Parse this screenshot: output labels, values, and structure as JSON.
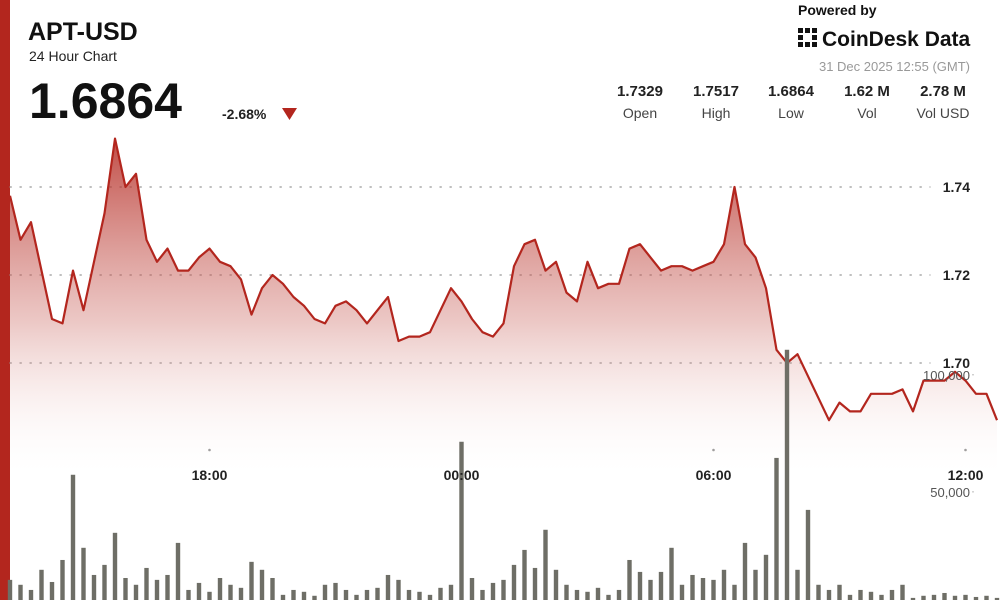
{
  "header": {
    "title": "APT-USD",
    "subtitle": "24 Hour Chart",
    "price": "1.6864",
    "change": "-2.68%",
    "powered_by": "Powered by",
    "brand": "CoinDesk Data",
    "timestamp": "31 Dec 2025 12:55 (GMT)",
    "stats": [
      {
        "value": "1.7329",
        "label": "Open"
      },
      {
        "value": "1.7517",
        "label": "High"
      },
      {
        "value": "1.6864",
        "label": "Low"
      },
      {
        "value": "1.62 M",
        "label": "Vol"
      },
      {
        "value": "2.78 M",
        "label": "Vol USD"
      }
    ]
  },
  "chart_data": {
    "type": "line",
    "categories": [
      null,
      null,
      null,
      null,
      null,
      null,
      null,
      null,
      null,
      null,
      null,
      null,
      null,
      null,
      null,
      null,
      null,
      null,
      null,
      "18:00",
      null,
      null,
      null,
      null,
      null,
      null,
      null,
      null,
      null,
      null,
      null,
      null,
      null,
      null,
      null,
      null,
      null,
      null,
      null,
      null,
      null,
      null,
      null,
      "00:00",
      null,
      null,
      null,
      null,
      null,
      null,
      null,
      null,
      null,
      null,
      null,
      null,
      null,
      null,
      null,
      null,
      null,
      null,
      null,
      null,
      null,
      null,
      null,
      "06:00",
      null,
      null,
      null,
      null,
      null,
      null,
      null,
      null,
      null,
      null,
      null,
      null,
      null,
      null,
      null,
      null,
      null,
      null,
      null,
      null,
      null,
      null,
      null,
      "12:00",
      null,
      null,
      null
    ],
    "series": [
      {
        "color": "#b3261e",
        "values": [
          1.738,
          1.728,
          1.732,
          1.721,
          1.71,
          1.709,
          1.721,
          1.712,
          1.723,
          1.734,
          1.751,
          1.74,
          1.743,
          1.728,
          1.723,
          1.726,
          1.721,
          1.721,
          1.724,
          1.726,
          1.723,
          1.722,
          1.719,
          1.711,
          1.717,
          1.72,
          1.718,
          1.715,
          1.713,
          1.71,
          1.709,
          1.713,
          1.714,
          1.712,
          1.709,
          1.712,
          1.715,
          1.705,
          1.706,
          1.706,
          1.707,
          1.712,
          1.717,
          1.714,
          1.71,
          1.707,
          1.706,
          1.709,
          1.722,
          1.727,
          1.728,
          1.721,
          1.723,
          1.716,
          1.714,
          1.723,
          1.717,
          1.718,
          1.718,
          1.726,
          1.727,
          1.724,
          1.721,
          1.722,
          1.722,
          1.721,
          1.722,
          1.723,
          1.727,
          1.74,
          1.727,
          1.724,
          1.717,
          1.703,
          1.7,
          1.702,
          1.697,
          1.692,
          1.687,
          1.691,
          1.689,
          1.689,
          1.693,
          1.693,
          1.693,
          1.694,
          1.689,
          1.696,
          1.696,
          1.696,
          1.698,
          1.696,
          1.693,
          1.693,
          1.687
        ]
      },
      {
        "type": "bar",
        "axis": "y2",
        "color": "#6e6e66",
        "values": [
          12400,
          10300,
          8100,
          16700,
          11500,
          20900,
          57300,
          26100,
          14500,
          18800,
          32500,
          13200,
          10300,
          17500,
          12400,
          14500,
          28200,
          8100,
          11100,
          7300,
          13200,
          10300,
          9000,
          20100,
          16700,
          13200,
          6000,
          8100,
          7300,
          5600,
          10300,
          11100,
          8100,
          6000,
          8100,
          9000,
          14500,
          12400,
          8100,
          7300,
          6000,
          9000,
          10300,
          71400,
          13200,
          8100,
          11100,
          12400,
          18800,
          25200,
          17500,
          33800,
          16700,
          10300,
          8100,
          7300,
          9000,
          6000,
          8100,
          20900,
          15800,
          12400,
          15800,
          26100,
          10300,
          14500,
          13200,
          12400,
          16700,
          10300,
          28200,
          16700,
          23100,
          64500,
          110700,
          16700,
          42300,
          10300,
          8100,
          10300,
          6000,
          8100,
          7300,
          6000,
          8100,
          10300,
          4700,
          5600,
          6000,
          6800,
          5600,
          6000,
          5100,
          5600,
          4700
        ]
      }
    ],
    "ylim": [
      1.66,
      1.755
    ],
    "yticks": [
      1.74,
      1.72,
      {
        "value": 1.7,
        "label": "1.70"
      }
    ],
    "y2lim": [
      3800,
      120000
    ],
    "y2ticks": [
      {
        "value": 100000,
        "label": "100,000"
      },
      {
        "value": 50000,
        "label": "50,000"
      }
    ],
    "grid": true
  }
}
